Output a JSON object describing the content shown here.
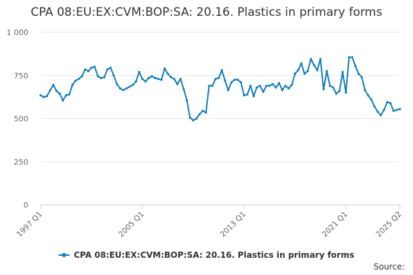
{
  "chart_data": {
    "type": "line",
    "title": "CPA 08:EU:EX:CVM:BOP:SA: 20.16. Plastics in primary forms",
    "xlabel": "",
    "ylabel": "",
    "series": [
      {
        "name": "CPA 08:EU:EX:CVM:BOP:SA: 20.16. Plastics in primary forms",
        "color": "#0f7bb9",
        "start": "1997 Q1",
        "frequency": "quarterly",
        "values": [
          635,
          625,
          630,
          665,
          695,
          660,
          645,
          605,
          635,
          640,
          695,
          720,
          730,
          745,
          785,
          775,
          795,
          800,
          745,
          735,
          740,
          785,
          795,
          750,
          700,
          675,
          665,
          675,
          685,
          695,
          715,
          770,
          730,
          715,
          735,
          745,
          735,
          730,
          725,
          790,
          760,
          740,
          730,
          700,
          730,
          670,
          605,
          505,
          490,
          500,
          525,
          545,
          535,
          690,
          690,
          730,
          735,
          780,
          720,
          665,
          710,
          725,
          725,
          710,
          635,
          640,
          690,
          630,
          680,
          690,
          655,
          690,
          690,
          700,
          680,
          705,
          665,
          690,
          675,
          695,
          760,
          780,
          820,
          760,
          775,
          845,
          810,
          780,
          845,
          670,
          775,
          690,
          680,
          645,
          660,
          770,
          650,
          855,
          855,
          805,
          760,
          740,
          665,
          635,
          610,
          570,
          540,
          520,
          550,
          595,
          590,
          545,
          550,
          555
        ]
      }
    ],
    "x_ticks": [
      "1997 Q1",
      "2005 Q1",
      "2013 Q1",
      "2021 Q1",
      "2025 Q2"
    ],
    "y_ticks": [
      "0",
      "250",
      "500",
      "750",
      "1 000"
    ],
    "ylim": [
      0,
      1000
    ],
    "grid": "horizontal",
    "legend_position": "bottom"
  },
  "source_label": "Source:"
}
